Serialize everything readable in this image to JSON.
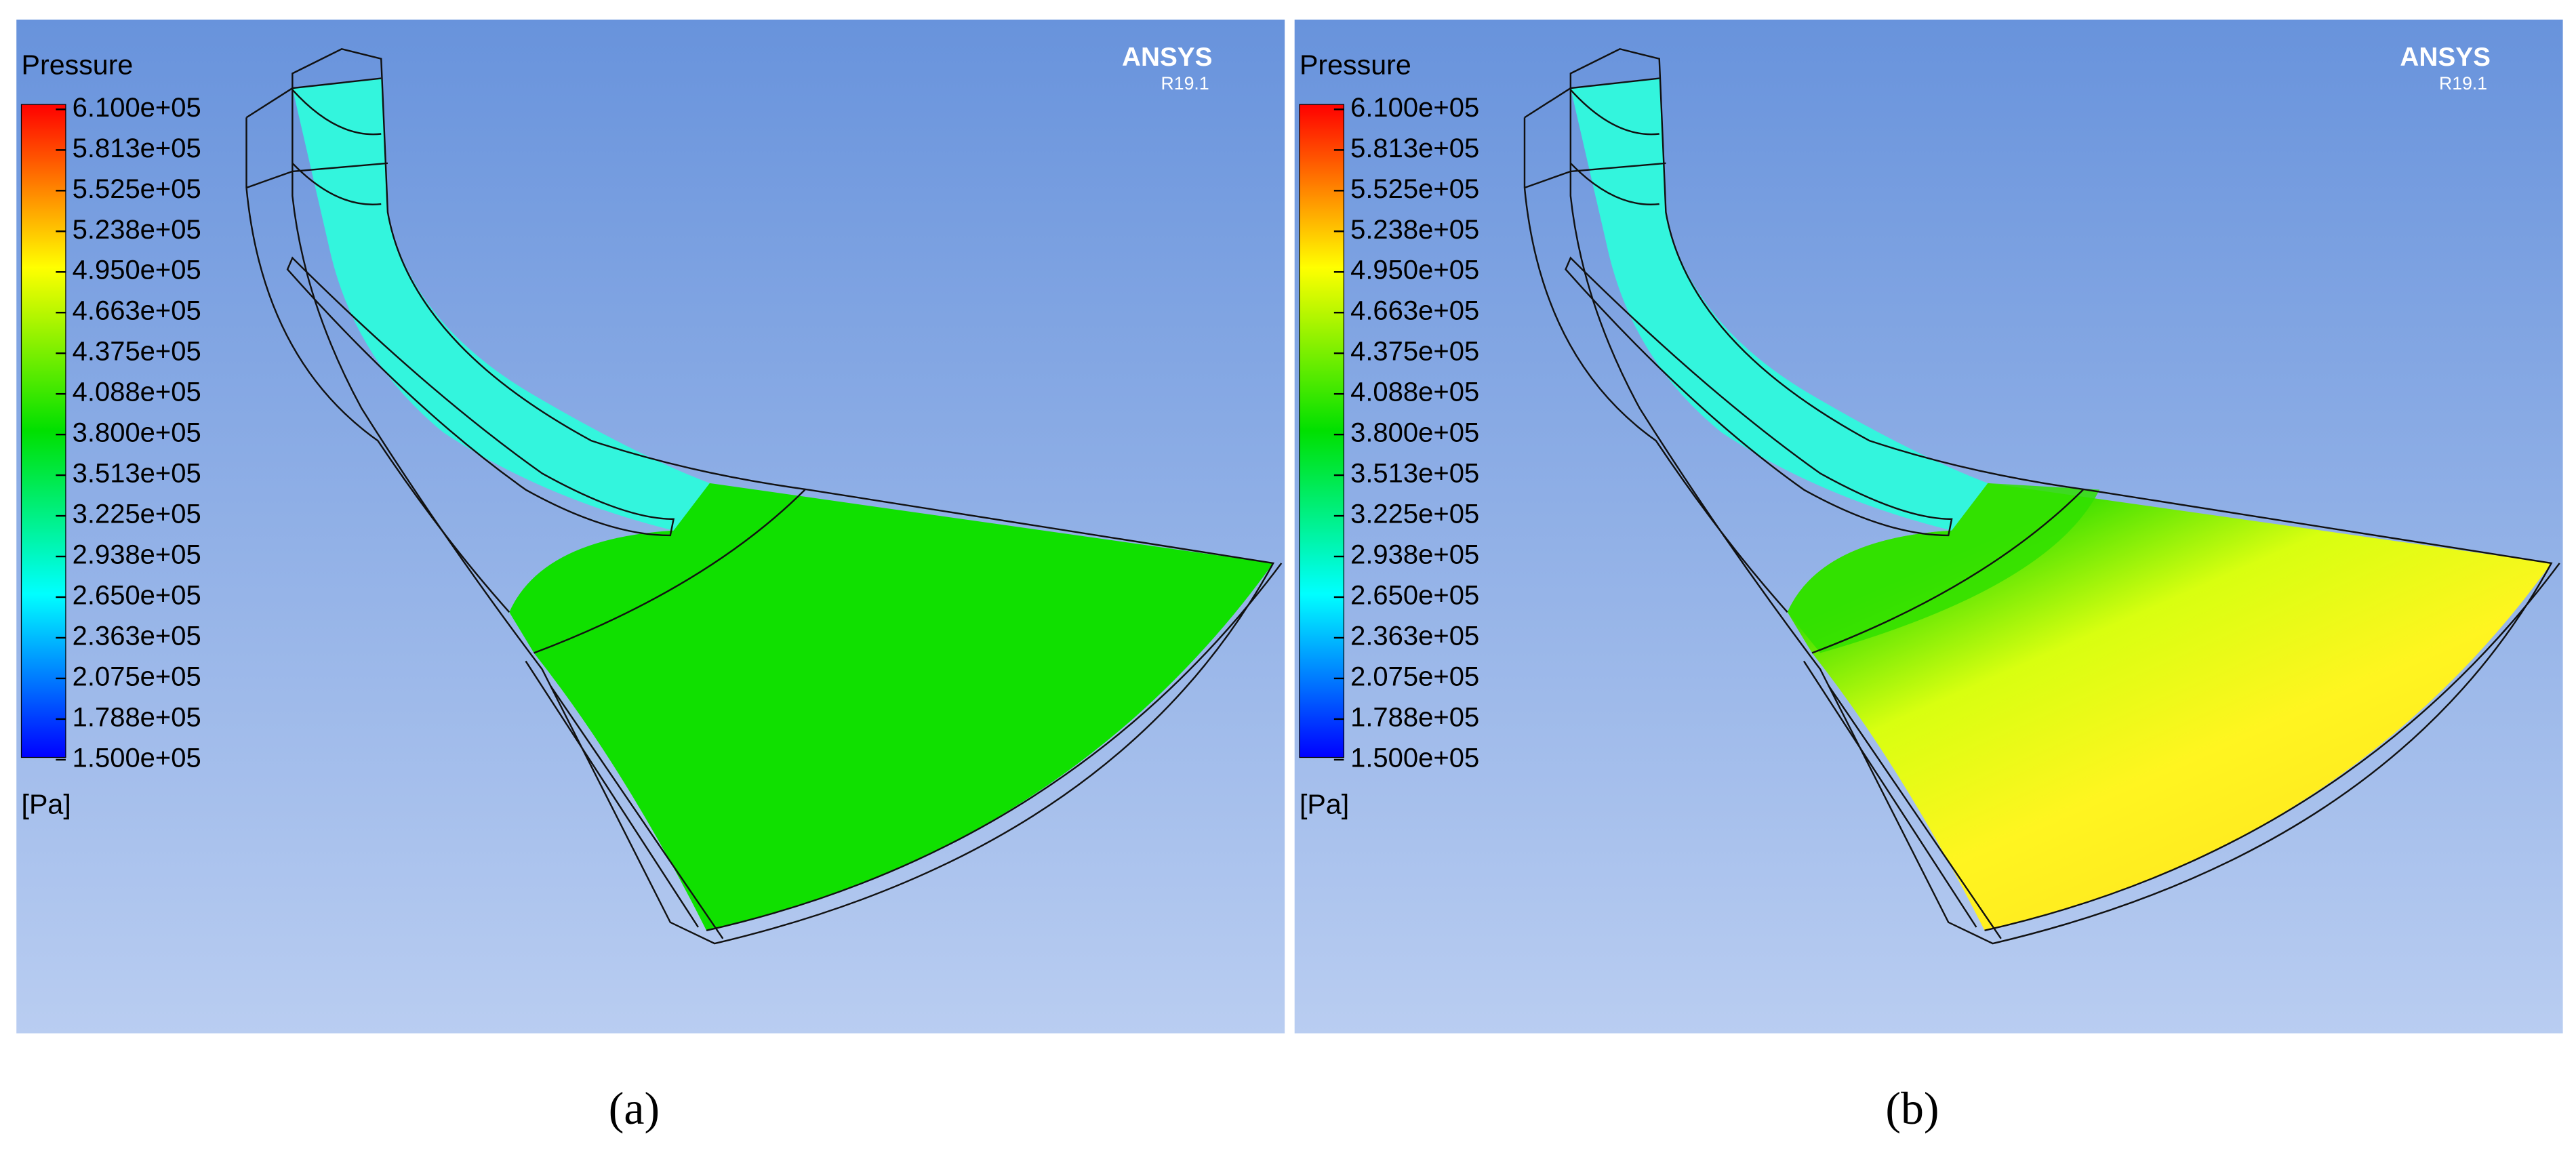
{
  "panels": [
    {
      "legend_title": "Pressure",
      "unit": "[Pa]",
      "brand": "ANSYS",
      "version": "R19.1",
      "caption": "(a)",
      "legend_labels": [
        "6.100e+05",
        "5.813e+05",
        "5.525e+05",
        "5.238e+05",
        "4.950e+05",
        "4.663e+05",
        "4.375e+05",
        "4.088e+05",
        "3.800e+05",
        "3.513e+05",
        "3.225e+05",
        "2.938e+05",
        "2.650e+05",
        "2.363e+05",
        "2.075e+05",
        "1.788e+05",
        "1.500e+05"
      ]
    },
    {
      "legend_title": "Pressure",
      "unit": "[Pa]",
      "brand": "ANSYS",
      "version": "R19.1",
      "caption": "(b)",
      "legend_labels": [
        "6.100e+05",
        "5.813e+05",
        "5.525e+05",
        "5.238e+05",
        "4.950e+05",
        "4.663e+05",
        "4.375e+05",
        "4.088e+05",
        "3.800e+05",
        "3.513e+05",
        "3.225e+05",
        "2.938e+05",
        "2.650e+05",
        "2.363e+05",
        "2.075e+05",
        "1.788e+05",
        "1.500e+05"
      ]
    }
  ]
}
